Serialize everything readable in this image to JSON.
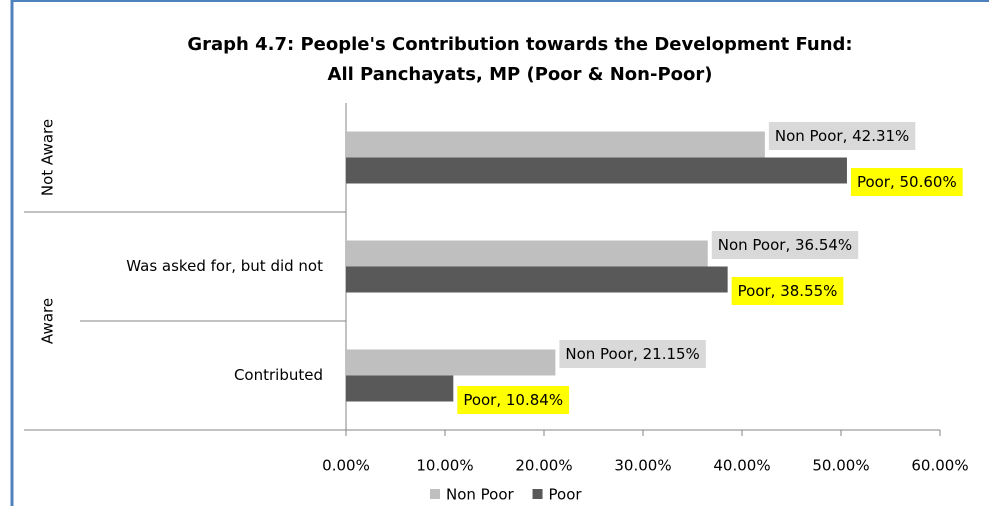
{
  "chart_data": {
    "type": "bar",
    "orientation": "horizontal",
    "title": [
      "Graph 4.7: People's Contribution towards the Development Fund:",
      "All Panchayats, MP (Poor & Non-Poor)"
    ],
    "groups": [
      {
        "label": "Not Aware",
        "categories": [
          0
        ]
      },
      {
        "label": "Aware",
        "categories": [
          1,
          2
        ]
      }
    ],
    "categories": [
      null,
      "Was asked for, but did not",
      "Contributed"
    ],
    "series": [
      {
        "name": "Non Poor",
        "color": "#bfbfbf",
        "label_background": "#d9d9d9",
        "values": [
          42.31,
          36.54,
          21.15
        ],
        "value_labels": [
          "Non Poor, 42.31%",
          "Non Poor, 36.54%",
          "Non Poor, 21.15%"
        ]
      },
      {
        "name": "Poor",
        "color": "#595959",
        "label_background": "#ffff00",
        "values": [
          50.6,
          38.55,
          10.84
        ],
        "value_labels": [
          "Poor, 50.60%",
          "Poor, 38.55%",
          "Poor, 10.84%"
        ]
      }
    ],
    "xlim": [
      0,
      60
    ],
    "xticks": [
      {
        "value": 0,
        "label": "0.00%"
      },
      {
        "value": 10,
        "label": "10.00%"
      },
      {
        "value": 20,
        "label": "20.00%"
      },
      {
        "value": 30,
        "label": "30.00%"
      },
      {
        "value": 40,
        "label": "40.00%"
      },
      {
        "value": 50,
        "label": "50.00%"
      },
      {
        "value": 60,
        "label": "60.00%"
      }
    ],
    "legend": "bottom"
  }
}
